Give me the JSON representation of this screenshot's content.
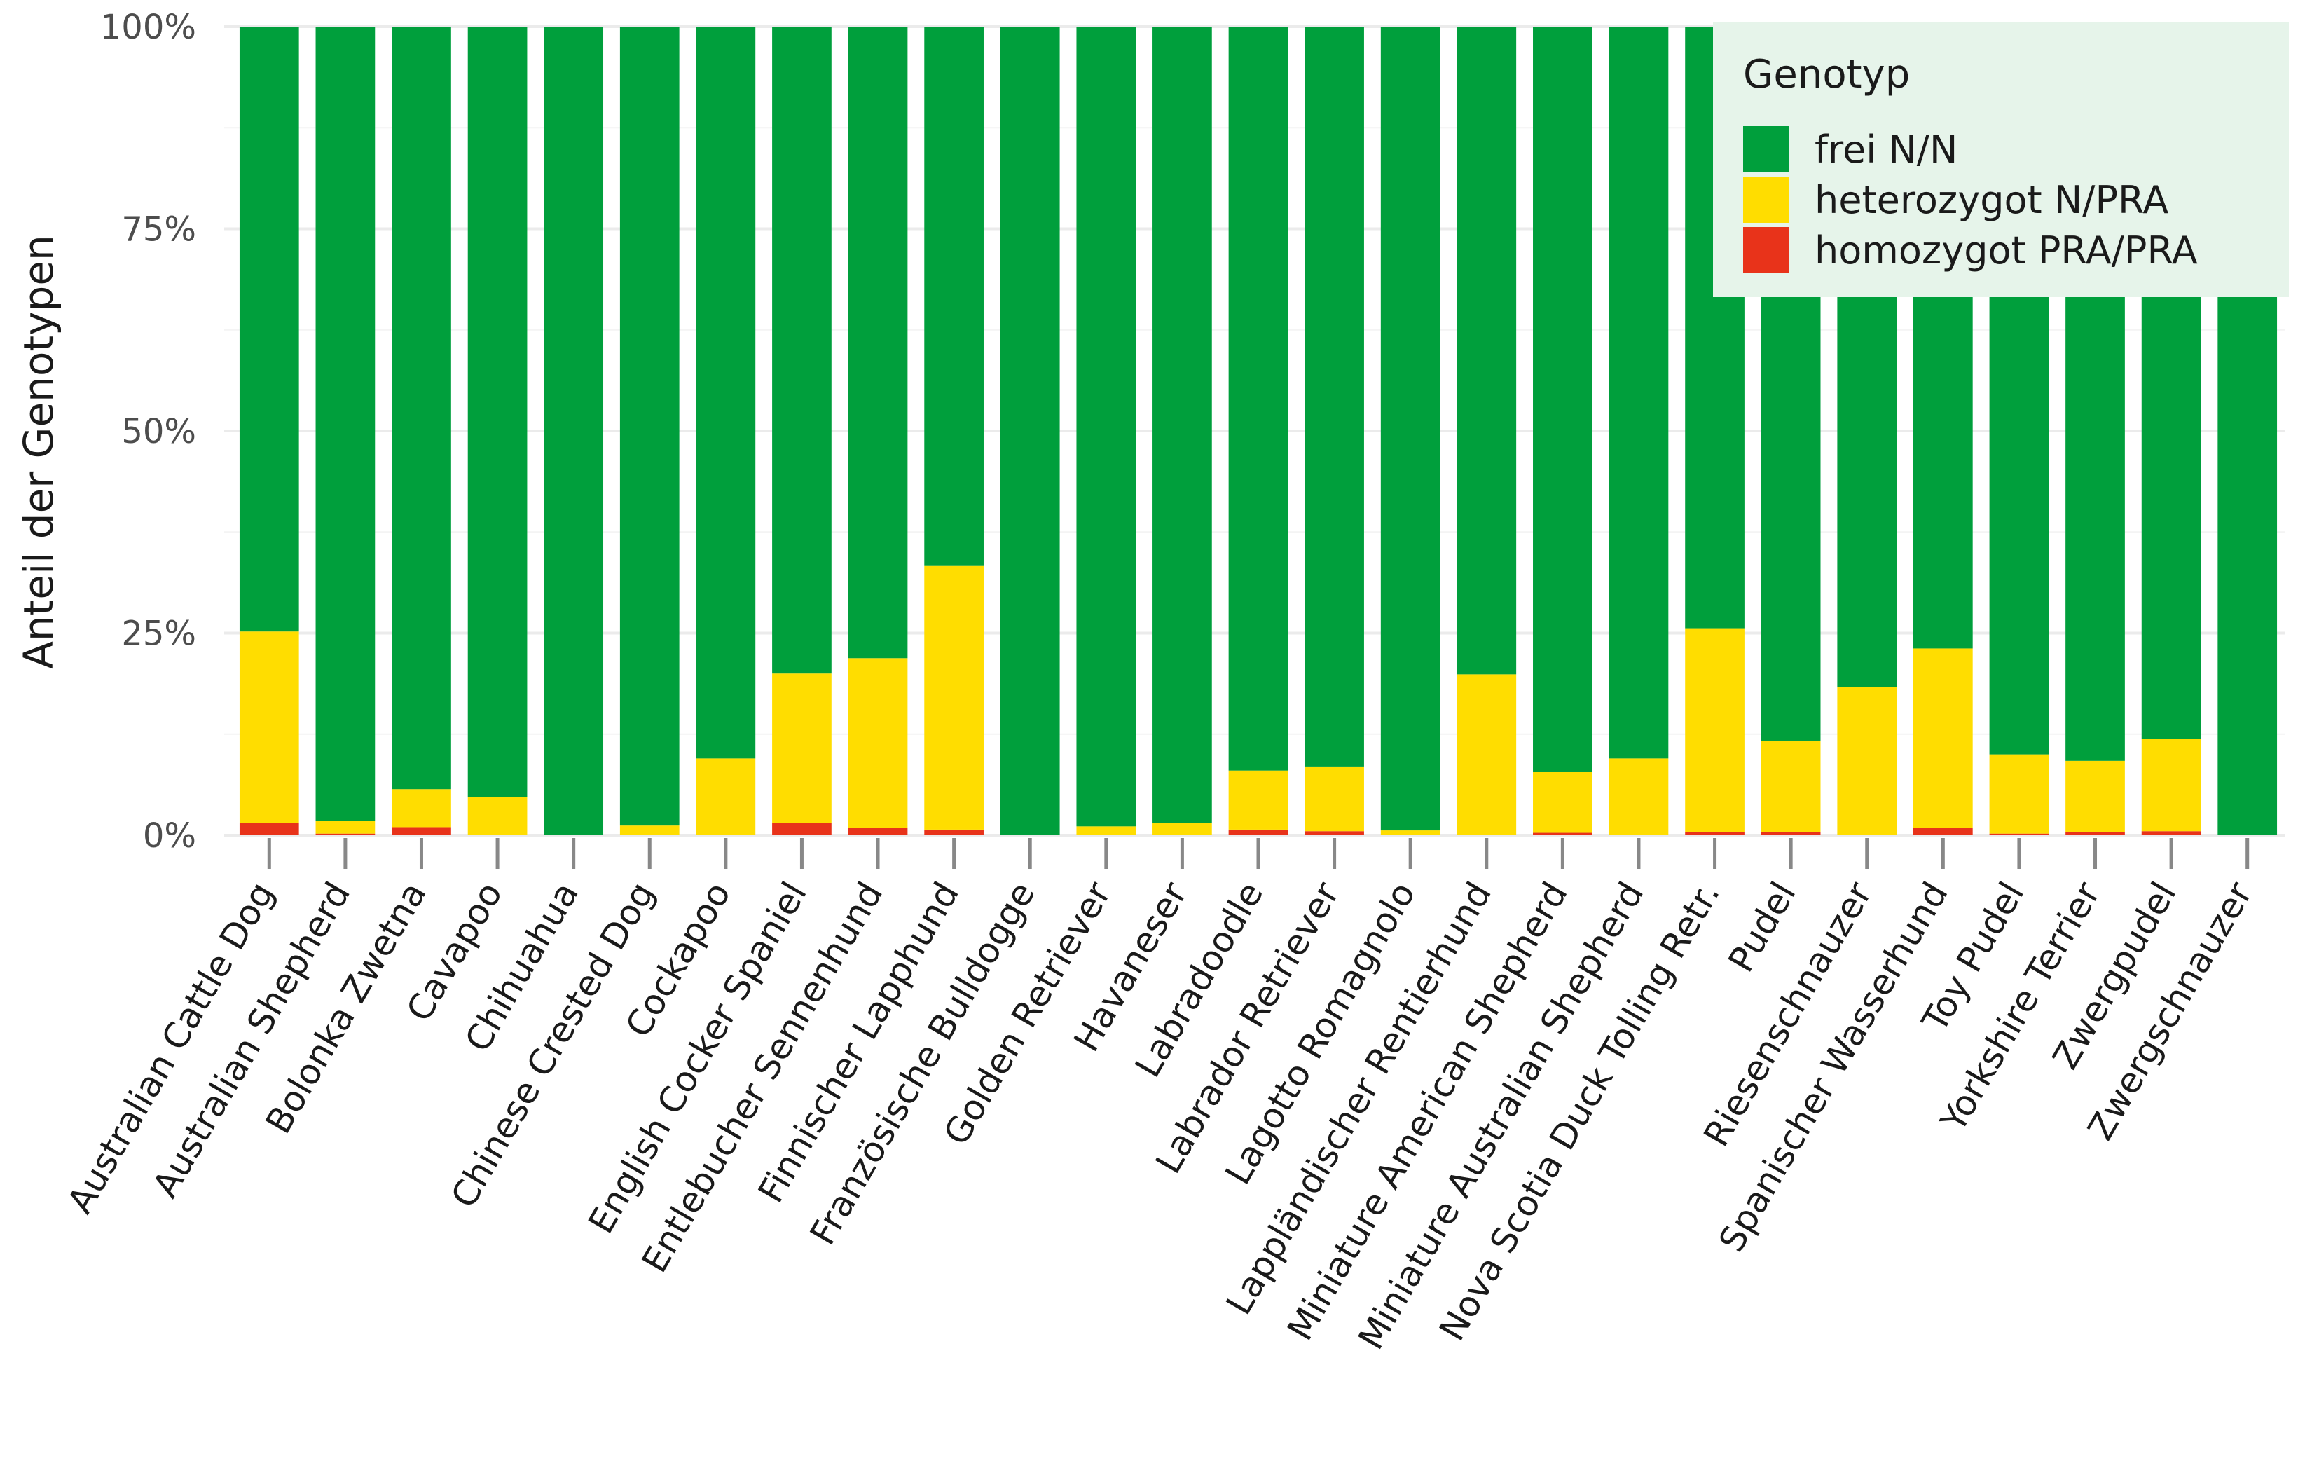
{
  "chart_data": {
    "type": "bar",
    "stacked": true,
    "title": "",
    "xlabel": "",
    "ylabel": "Anteil der Genotypen",
    "ylim": [
      0,
      1
    ],
    "y_ticks": [
      0,
      0.25,
      0.5,
      0.75,
      1.0
    ],
    "y_tick_labels": [
      "0%",
      "25%",
      "50%",
      "75%",
      "100%"
    ],
    "grid": "horizontal",
    "legend": {
      "title": "Genotyp",
      "placement": "top-right, inside plot"
    },
    "categories": [
      "Australian Cattle Dog",
      "Australian Shepherd",
      "Bolonka Zwetna",
      "Cavapoo",
      "Chihuahua",
      "Chinese Crested Dog",
      "Cockapoo",
      "English Cocker Spaniel",
      "Entlebucher Sennenhund",
      "Finnischer Lapphund",
      "Französische Bulldogge",
      "Golden Retriever",
      "Havaneser",
      "Labradoodle",
      "Labrador Retriever",
      "Lagotto Romagnolo",
      "Lappländischer Rentierhund",
      "Miniature American Shepherd",
      "Miniature Australian Shepherd",
      "Nova Scotia Duck Tolling Retr.",
      "Pudel",
      "Riesenschnauzer",
      "Spanischer Wasserhund",
      "Toy Pudel",
      "Yorkshire Terrier",
      "Zwergpudel",
      "Zwergschnauzer"
    ],
    "series": [
      {
        "name": "homozygot PRA/PRA",
        "color": "#E8331A",
        "values": [
          0.015,
          0.002,
          0.01,
          0.0,
          0.0,
          0.0,
          0.0,
          0.015,
          0.009,
          0.007,
          0.0,
          0.0,
          0.0,
          0.007,
          0.005,
          0.0,
          0.0,
          0.003,
          0.0,
          0.004,
          0.004,
          0.0,
          0.009,
          0.002,
          0.004,
          0.005,
          0.0
        ]
      },
      {
        "name": "heterozygot N/PRA",
        "color": "#FFDD00",
        "values": [
          0.237,
          0.016,
          0.047,
          0.047,
          0.0,
          0.012,
          0.095,
          0.185,
          0.21,
          0.326,
          0.0,
          0.011,
          0.015,
          0.073,
          0.08,
          0.006,
          0.199,
          0.075,
          0.095,
          0.252,
          0.113,
          0.183,
          0.222,
          0.098,
          0.088,
          0.114,
          0.0
        ]
      },
      {
        "name": "frei N/N",
        "color": "#009F3C",
        "values": [
          0.748,
          0.982,
          0.943,
          0.953,
          1.0,
          0.988,
          0.905,
          0.8,
          0.781,
          0.667,
          1.0,
          0.989,
          0.985,
          0.92,
          0.915,
          0.994,
          0.801,
          0.922,
          0.905,
          0.744,
          0.883,
          0.817,
          0.769,
          0.9,
          0.908,
          0.881,
          1.0
        ]
      }
    ]
  },
  "legend_items": [
    {
      "label": "frei N/N",
      "color": "#009F3C"
    },
    {
      "label": "heterozygot N/PRA",
      "color": "#FFDD00"
    },
    {
      "label": "homozygot PRA/PRA",
      "color": "#E8331A"
    }
  ]
}
